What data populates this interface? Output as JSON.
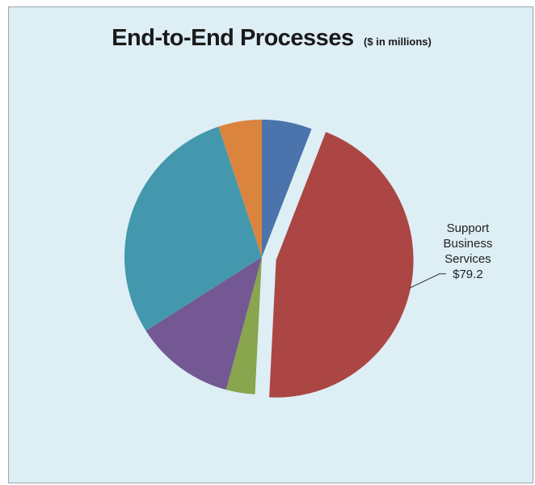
{
  "chart_data": {
    "type": "pie",
    "title": "End-to-End Processes",
    "subtitle": "($ in millions)",
    "slices": [
      {
        "value": 10.4,
        "color": "#4a74ab"
      },
      {
        "value": 79.2,
        "color": "#ab4644",
        "label_lines": [
          "Support",
          "Business",
          "Services",
          "$79.2"
        ],
        "exploded": true
      },
      {
        "value": 6.0,
        "color": "#89a54e"
      },
      {
        "value": 20.8,
        "color": "#735893"
      },
      {
        "value": 51.0,
        "color": "#4498ae"
      },
      {
        "value": 9.0,
        "color": "#db843d"
      }
    ]
  }
}
